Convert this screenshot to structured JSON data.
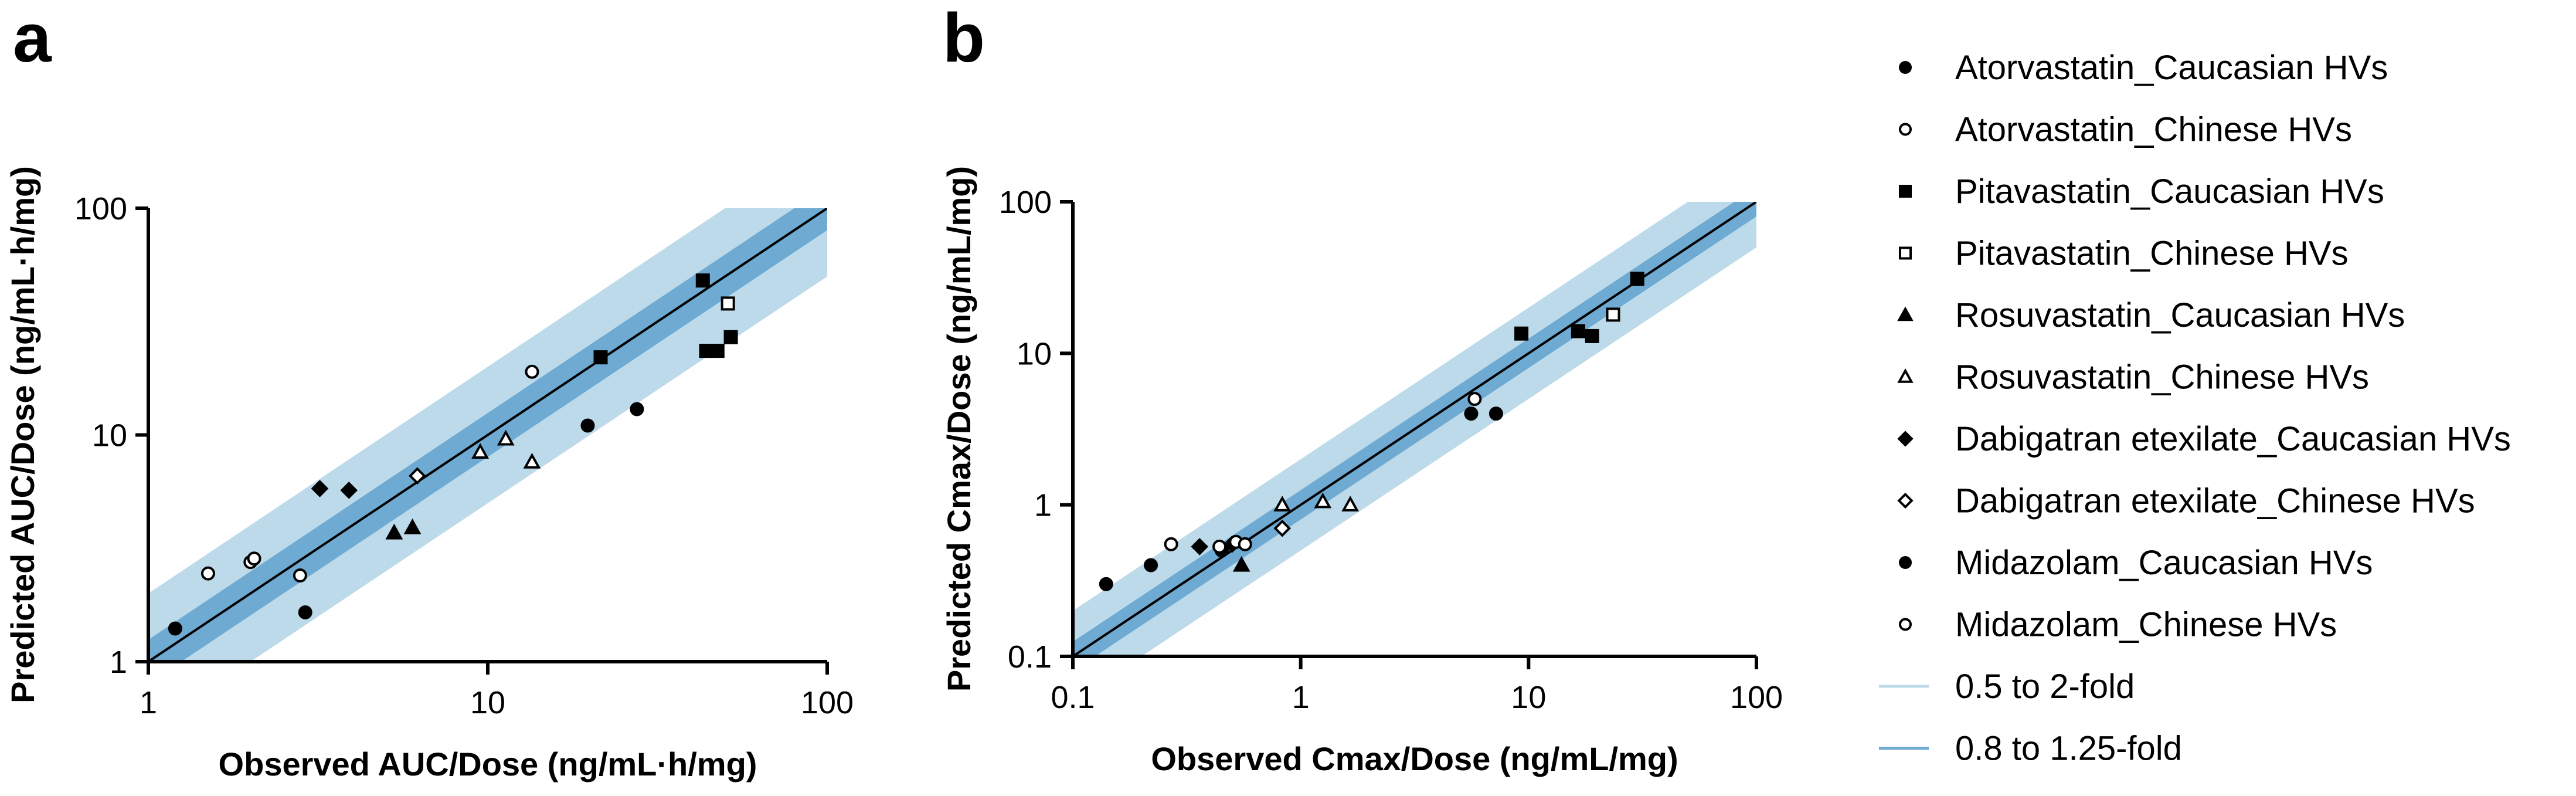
{
  "colors": {
    "band_2fold": "#bcdaea",
    "band_125fold": "#6eaad2",
    "unity_line": "#000000",
    "marker": "#000000"
  },
  "chart_data": [
    {
      "type": "scatter",
      "panel": "a",
      "xlabel": "Observed AUC/Dose (ng/mL·h/mg)",
      "ylabel": "Predicted AUC/Dose (ng/mL·h/mg)",
      "xscale": "log",
      "yscale": "log",
      "xlim": [
        1,
        100
      ],
      "ylim": [
        1,
        100
      ],
      "xticks": [
        "1",
        "10",
        "100"
      ],
      "yticks": [
        "1",
        "10",
        "100"
      ],
      "grid": false,
      "series": [
        {
          "name": "Atorvastatin_Caucasian HVs",
          "marker": "circle-filled",
          "points": [
            [
              1.2,
              1.4
            ],
            [
              2.9,
              1.65
            ],
            [
              19.7,
              11.0
            ],
            [
              27.5,
              13.0
            ]
          ]
        },
        {
          "name": "Atorvastatin_Chinese HVs",
          "marker": "circle-open",
          "points": [
            [
              1.5,
              2.45
            ],
            [
              2.0,
              2.75
            ],
            [
              2.05,
              2.85
            ],
            [
              2.8,
              2.4
            ],
            [
              13.5,
              19.0
            ]
          ]
        },
        {
          "name": "Pitavastatin_Caucasian HVs",
          "marker": "square-filled",
          "points": [
            [
              21.5,
              22.0
            ],
            [
              43.0,
              48.0
            ],
            [
              44.0,
              23.5
            ],
            [
              47.5,
              23.5
            ],
            [
              52.0,
              27.0
            ]
          ]
        },
        {
          "name": "Pitavastatin_Chinese HVs",
          "marker": "square-open",
          "points": [
            [
              51.0,
              38.0
            ]
          ]
        },
        {
          "name": "Rosuvastatin_Caucasian HVs",
          "marker": "triangle-filled",
          "points": [
            [
              5.3,
              3.7
            ],
            [
              6.0,
              3.9
            ]
          ]
        },
        {
          "name": "Rosuvastatin_Chinese HVs",
          "marker": "triangle-open",
          "points": [
            [
              9.5,
              8.4
            ],
            [
              11.3,
              9.6
            ],
            [
              13.5,
              7.6
            ]
          ]
        },
        {
          "name": "Dabigatran etexilate_Caucasian HVs",
          "marker": "diamond-filled",
          "points": [
            [
              3.2,
              5.8
            ],
            [
              3.9,
              5.7
            ]
          ]
        },
        {
          "name": "Dabigatran etexilate_Chinese HVs",
          "marker": "diamond-open",
          "points": [
            [
              6.2,
              6.6
            ]
          ]
        },
        {
          "name": "Midazolam_Caucasian HVs",
          "marker": "circle-filled",
          "points": []
        },
        {
          "name": "Midazolam_Chinese HVs",
          "marker": "circle-open",
          "points": []
        }
      ]
    },
    {
      "type": "scatter",
      "panel": "b",
      "xlabel": "Observed Cmax/Dose (ng/mL/mg)",
      "ylabel": "Predicted Cmax/Dose (ng/mL/mg)",
      "xscale": "log",
      "yscale": "log",
      "xlim": [
        0.1,
        100
      ],
      "ylim": [
        0.1,
        100
      ],
      "xticks": [
        "0.1",
        "1",
        "10",
        "100"
      ],
      "yticks": [
        "0.1",
        "1",
        "10",
        "100"
      ],
      "grid": false,
      "series": [
        {
          "name": "Atorvastatin_Caucasian HVs",
          "marker": "circle-filled",
          "points": [
            [
              5.6,
              4.0
            ],
            [
              7.2,
              4.0
            ]
          ]
        },
        {
          "name": "Atorvastatin_Chinese HVs",
          "marker": "circle-open",
          "points": [
            [
              5.8,
              5.0
            ]
          ]
        },
        {
          "name": "Pitavastatin_Caucasian HVs",
          "marker": "square-filled",
          "points": [
            [
              9.3,
              13.5
            ],
            [
              16.5,
              14.0
            ],
            [
              19.0,
              13.0
            ],
            [
              30.0,
              31.0
            ]
          ]
        },
        {
          "name": "Pitavastatin_Chinese HVs",
          "marker": "square-open",
          "points": [
            [
              23.5,
              18.0
            ]
          ]
        },
        {
          "name": "Rosuvastatin_Caucasian HVs",
          "marker": "triangle-filled",
          "points": [
            [
              0.55,
              0.4
            ]
          ]
        },
        {
          "name": "Rosuvastatin_Chinese HVs",
          "marker": "triangle-open",
          "points": [
            [
              0.83,
              1.0
            ],
            [
              1.25,
              1.05
            ],
            [
              1.65,
              1.0
            ]
          ]
        },
        {
          "name": "Dabigatran etexilate_Caucasian HVs",
          "marker": "diamond-filled",
          "points": [
            [
              0.36,
              0.53
            ],
            [
              0.5,
              0.55
            ]
          ]
        },
        {
          "name": "Dabigatran etexilate_Chinese HVs",
          "marker": "diamond-open",
          "points": [
            [
              0.83,
              0.7
            ]
          ]
        },
        {
          "name": "Midazolam_Caucasian HVs",
          "marker": "circle-filled",
          "points": [
            [
              0.14,
              0.3
            ],
            [
              0.22,
              0.4
            ],
            [
              0.45,
              0.5
            ]
          ]
        },
        {
          "name": "Midazolam_Chinese HVs",
          "marker": "circle-open",
          "points": [
            [
              0.27,
              0.55
            ],
            [
              0.44,
              0.53
            ],
            [
              0.52,
              0.57
            ],
            [
              0.57,
              0.55
            ]
          ]
        }
      ]
    }
  ],
  "legend": {
    "placement": "right",
    "items": [
      {
        "label": "Atorvastatin_Caucasian HVs",
        "marker": "circle-filled"
      },
      {
        "label": "Atorvastatin_Chinese HVs",
        "marker": "circle-open"
      },
      {
        "label": "Pitavastatin_Caucasian HVs",
        "marker": "square-filled"
      },
      {
        "label": "Pitavastatin_Chinese HVs",
        "marker": "square-open"
      },
      {
        "label": "Rosuvastatin_Caucasian HVs",
        "marker": "triangle-filled"
      },
      {
        "label": "Rosuvastatin_Chinese HVs",
        "marker": "triangle-open"
      },
      {
        "label": "Dabigatran etexilate_Caucasian HVs",
        "marker": "diamond-filled"
      },
      {
        "label": "Dabigatran etexilate_Chinese HVs",
        "marker": "diamond-open"
      },
      {
        "label": "Midazolam_Caucasian HVs",
        "marker": "circle-filled"
      },
      {
        "label": "Midazolam_Chinese HVs",
        "marker": "circle-open"
      },
      {
        "label": "0.5 to 2-fold",
        "marker": "line-light"
      },
      {
        "label": "0.8 to 1.25-fold",
        "marker": "line-dark"
      }
    ]
  }
}
